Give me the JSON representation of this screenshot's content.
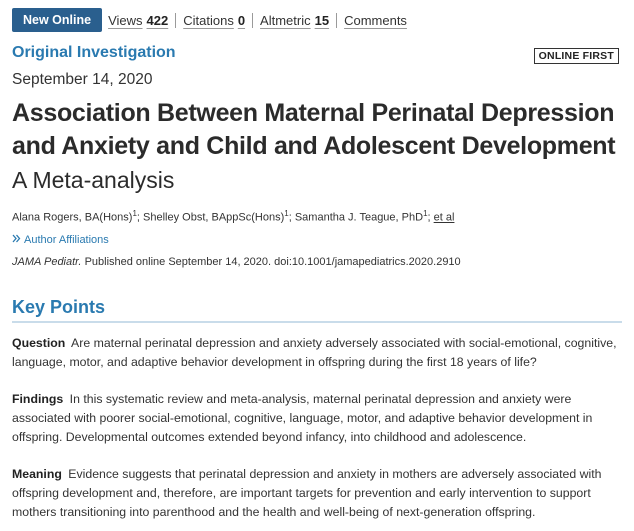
{
  "metrics": {
    "badge": "New Online",
    "views_label": "Views",
    "views_count": "422",
    "citations_label": "Citations",
    "citations_count": "0",
    "altmetric_label": "Altmetric",
    "altmetric_count": "15",
    "comments_label": "Comments"
  },
  "article": {
    "type": "Original Investigation",
    "online_first": "ONLINE FIRST",
    "date": "September 14, 2020",
    "title": "Association Between Maternal Perinatal Depression and Anxiety and Child and Adolescent Development",
    "subtitle": "A Meta-analysis",
    "authors": [
      {
        "name": "Alana Rogers, BA(Hons)",
        "sup": "1"
      },
      {
        "name": "Shelley Obst, BAppSc(Hons)",
        "sup": "1"
      },
      {
        "name": "Samantha J. Teague, PhD",
        "sup": "1"
      }
    ],
    "et_al": "et al",
    "affiliations_link": "Author Affiliations",
    "journal": "JAMA Pediatr.",
    "citation": "Published online September 14, 2020. doi:10.1001/jamapediatrics.2020.2910"
  },
  "key_points": {
    "heading": "Key Points",
    "question_label": "Question",
    "question_text": "Are maternal perinatal depression and anxiety adversely associated with social-emotional, cognitive, language, motor, and adaptive behavior development in offspring during the first 18 years of life?",
    "findings_label": "Findings",
    "findings_text": "In this systematic review and meta-analysis, maternal perinatal depression and anxiety were associated with poorer social-emotional, cognitive, language, motor, and adaptive behavior development in offspring. Developmental outcomes extended beyond infancy, into childhood and adolescence.",
    "meaning_label": "Meaning",
    "meaning_text": "Evidence suggests that perinatal depression and anxiety in mothers are adversely associated with offspring development and, therefore, are important targets for prevention and early intervention to support mothers transitioning into parenthood and the health and well-being of next-generation offspring."
  },
  "colors": {
    "accent": "#2a7ab0",
    "badge": "#2a5f8e"
  }
}
